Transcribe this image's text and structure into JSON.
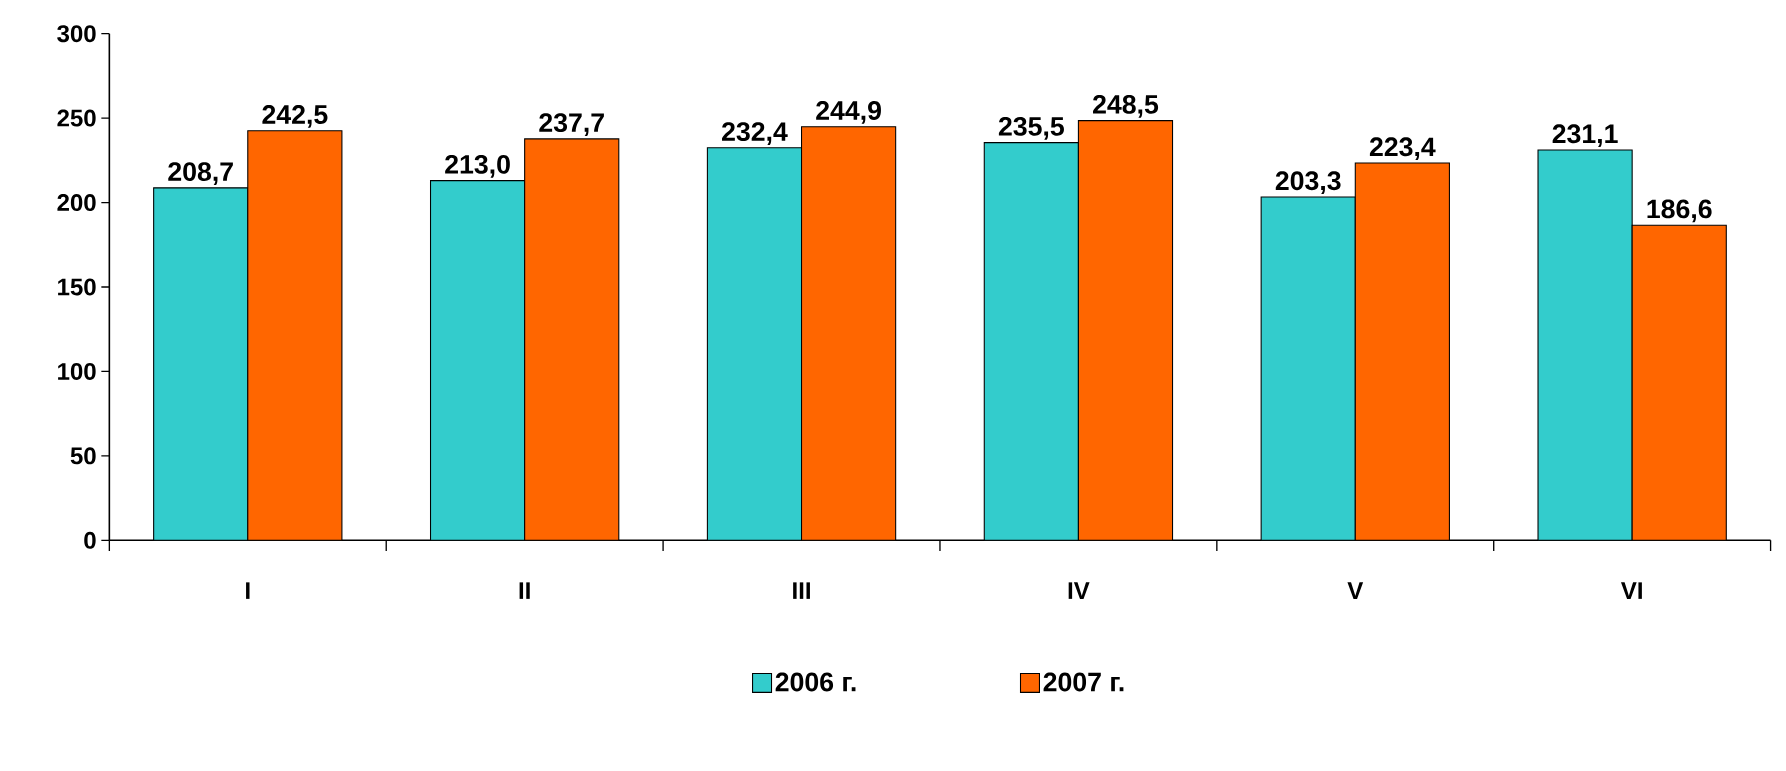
{
  "chart_data": {
    "type": "bar",
    "categories": [
      "I",
      "II",
      "III",
      "IV",
      "V",
      "VI"
    ],
    "series": [
      {
        "name": "2006 г.",
        "color": "#33cccc",
        "values": [
          208.7,
          213.0,
          232.4,
          235.5,
          203.3,
          231.1
        ],
        "value_labels": [
          "208,7",
          "213,0",
          "232,4",
          "235,5",
          "203,3",
          "231,1"
        ]
      },
      {
        "name": "2007 г.",
        "color": "#ff6600",
        "values": [
          242.5,
          237.7,
          244.9,
          248.5,
          223.4,
          186.6
        ],
        "value_labels": [
          "242,5",
          "237,7",
          "244,9",
          "248,5",
          "223,4",
          "186,6"
        ]
      }
    ],
    "ylim": [
      0,
      300
    ],
    "yticks": [
      0,
      50,
      100,
      150,
      200,
      250,
      300
    ],
    "grid": false,
    "legend": "bottom"
  }
}
